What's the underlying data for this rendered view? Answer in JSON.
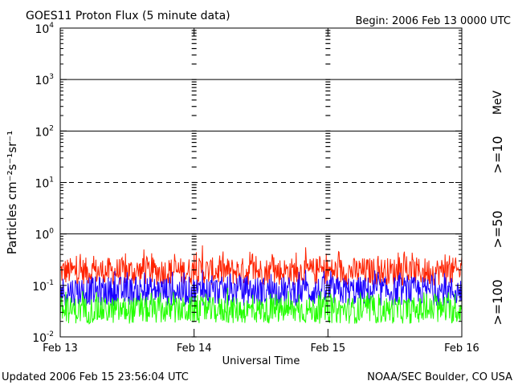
{
  "chart_data": {
    "type": "line",
    "title": "GOES11 Proton Flux (5 minute data)",
    "begin": "Begin: 2006 Feb 13 0000 UTC",
    "updated": "Updated 2006 Feb 15 23:56:04 UTC",
    "credit": "NOAA/SEC Boulder, CO USA",
    "xlabel": "Universal Time",
    "ylabel": "Particles cm⁻²s⁻¹sr⁻¹",
    "units": "MeV",
    "yscale": "log",
    "ylim": [
      0.01,
      10000
    ],
    "xlim": [
      0,
      72
    ],
    "x_unit": "hours since Feb 13 00:00 UTC",
    "x_ticks": [
      {
        "x": 0,
        "label": "Feb 13"
      },
      {
        "x": 24,
        "label": "Feb 14"
      },
      {
        "x": 48,
        "label": "Feb 15"
      },
      {
        "x": 72,
        "label": "Feb 16"
      }
    ],
    "y_ticks": [
      {
        "value": 0.01,
        "base": "10",
        "exp": "-2"
      },
      {
        "value": 0.1,
        "base": "10",
        "exp": "-1"
      },
      {
        "value": 1,
        "base": "10",
        "exp": "0"
      },
      {
        "value": 10,
        "base": "10",
        "exp": "1"
      },
      {
        "value": 100,
        "base": "10",
        "exp": "2"
      },
      {
        "value": 1000,
        "base": "10",
        "exp": "3"
      },
      {
        "value": 10000,
        "base": "10",
        "exp": "4"
      }
    ],
    "thresholds": [
      {
        "value": 10,
        "style": "dashed"
      },
      {
        "value": 1,
        "style": "solid"
      },
      {
        "value": 100,
        "style": "solid"
      },
      {
        "value": 1000,
        "style": "solid"
      }
    ],
    "series": [
      {
        "name": ">=10",
        "color": "#ff2200",
        "typical": [
          0.1,
          0.35
        ],
        "peaks": [
          [
            15,
            0.5
          ],
          [
            25.5,
            0.6
          ],
          [
            34,
            0.45
          ],
          [
            44,
            0.55
          ],
          [
            69,
            0.4
          ]
        ]
      },
      {
        "name": ">=50",
        "color": "#1a00ff",
        "typical": [
          0.04,
          0.15
        ],
        "peaks": [
          [
            25.5,
            0.2
          ],
          [
            44,
            0.2
          ]
        ]
      },
      {
        "name": ">=100",
        "color": "#22ff00",
        "typical": [
          0.018,
          0.06
        ],
        "peaks": [
          [
            30,
            0.09
          ]
        ]
      }
    ]
  }
}
